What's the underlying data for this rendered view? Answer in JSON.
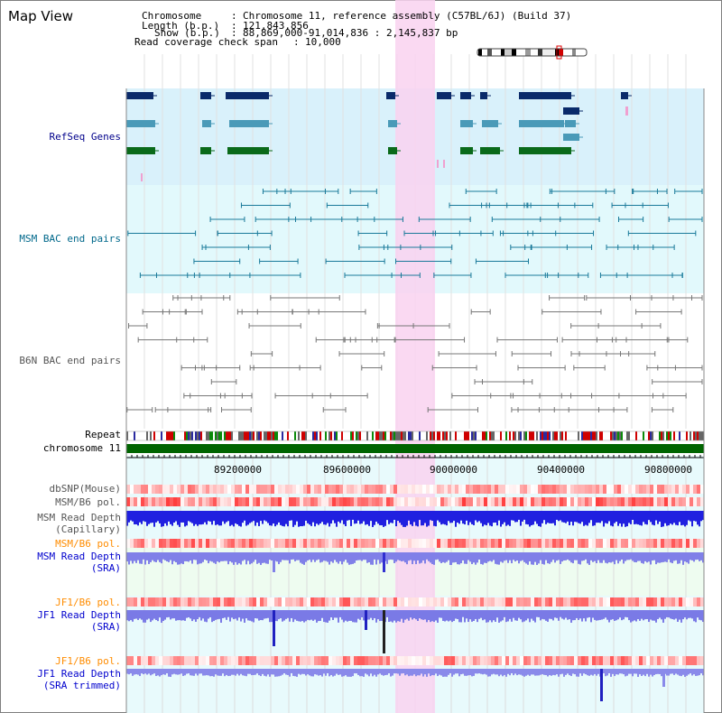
{
  "title": "Map View",
  "info": {
    "chromosome_label": "Chromosome",
    "chromosome_value": "Chromosome 11, reference assembly (C57BL/6J) (Build 37)",
    "length_label": "Length (b.p.)",
    "length_value": "121,843,856",
    "show_label": "Show (b.p.)",
    "show_value": "88,869,000-91,014,836 : 2,145,837 bp",
    "coverage_label": "Read coverage check span",
    "coverage_value": "10,000"
  },
  "tracks": {
    "refseq": "RefSeq Genes",
    "msm_bac": "MSM BAC end pairs",
    "b6n_bac": "B6N BAC end pairs",
    "repeat": "Repeat",
    "chromosome": "chromosome 11",
    "dbsnp": "dbSNP(Mouse)",
    "msm_b6_pol_1": "MSM/B6 pol.",
    "msm_read_depth_cap_1": "MSM Read Depth",
    "msm_read_depth_cap_2": "(Capillary)",
    "msm_b6_pol_2": "MSM/B6 pol.",
    "msm_read_depth_sra_1": "MSM Read Depth",
    "msm_read_depth_sra_2": "(SRA)",
    "jf1_b6_pol_1": "JF1/B6 pol.",
    "jf1_read_depth_sra_1": "JF1 Read Depth",
    "jf1_read_depth_sra_2": "(SRA)",
    "jf1_b6_pol_2": "JF1/B6 pol.",
    "jf1_read_depth_trim_1": "JF1 Read Depth",
    "jf1_read_depth_trim_2": "(SRA trimmed)"
  },
  "ruler": {
    "ticks": [
      "89200000",
      "89600000",
      "90000000",
      "90400000",
      "90800000"
    ]
  },
  "colors": {
    "refseq_label": "#00008b",
    "msm_label": "#00688b",
    "b6n_label": "#555555",
    "orange_label": "#ff8c00",
    "blue_label": "#0000cd",
    "refseq_bg": "#d9f1fb",
    "msm_bg": "#e2f9fc",
    "highlight": "#f9d2f0",
    "chromosome_bar": "#006400"
  }
}
